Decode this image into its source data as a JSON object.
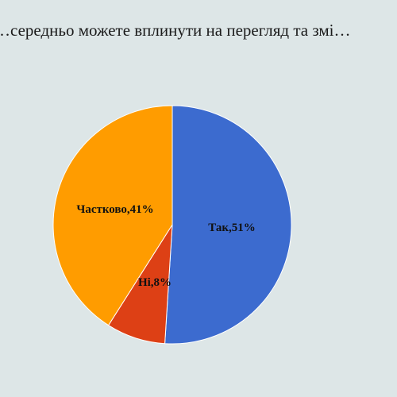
{
  "chart_data": {
    "type": "pie",
    "title": "…середньо можете вплинути на перегляд та змі…",
    "slices": [
      {
        "name": "Так",
        "value": 51,
        "label": "Так,51%",
        "color": "#3c6bcf"
      },
      {
        "name": "Ні",
        "value": 8,
        "label": "Ні,8%",
        "color": "#dd4015"
      },
      {
        "name": "Частково",
        "value": 41,
        "label": "Частково,41%",
        "color": "#ff9c00"
      }
    ],
    "legend": "none",
    "start_angle": "12 o'clock, clockwise"
  }
}
